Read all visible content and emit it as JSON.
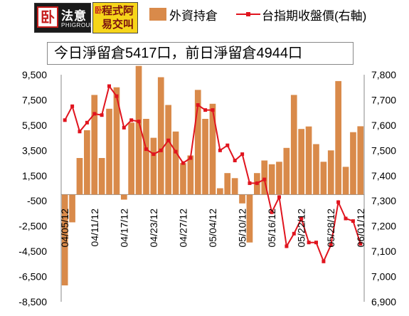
{
  "logos": {
    "logo1_mark": "卧",
    "logo1_name": "法意",
    "logo1_sub": "PHIGROUP",
    "logo2_mark": "卧",
    "logo2_text": "程式阿易交叫"
  },
  "note": "今日淨留倉5417口，前日淨留倉4944口",
  "colors": {
    "bar": "#d98a4a",
    "line": "#e0141e"
  },
  "chart_data": {
    "type": "bar",
    "legend": [
      "外資持倉",
      "台指期收盤價(右軸)"
    ],
    "legend_position": "top",
    "grid": false,
    "y_left": {
      "min": -8500,
      "max": 9500,
      "ticks": [
        9500,
        7500,
        5500,
        3500,
        1500,
        -500,
        -2500,
        -4500,
        -6500,
        -8500
      ],
      "tick_labels": [
        "9,500",
        "7,500",
        "5,500",
        "3,500",
        "1,500",
        "-500",
        "-2,500",
        "-4,500",
        "-6,500",
        "-8,500"
      ]
    },
    "y_right": {
      "min": 6900,
      "max": 7800,
      "ticks": [
        7800,
        7700,
        7600,
        7500,
        7400,
        7300,
        7200,
        7100,
        7000,
        6900
      ],
      "tick_labels": [
        "7,800",
        "7,700",
        "7,600",
        "7,500",
        "7,400",
        "7,300",
        "7,200",
        "7,100",
        "7,000",
        "6,900"
      ]
    },
    "x_tick_labels": [
      "04/05/12",
      "04/11/12",
      "04/17/12",
      "04/23/12",
      "04/27/12",
      "05/04/12",
      "05/10/12",
      "05/16/12",
      "05/22/12",
      "05/28/12",
      "06/01/12"
    ],
    "x_tick_index": [
      0,
      4,
      8,
      12,
      16,
      20,
      24,
      28,
      32,
      36,
      40
    ],
    "series": [
      {
        "name": "外資持倉",
        "axis": "left",
        "values": [
          -7200,
          -2200,
          2900,
          5100,
          7900,
          2900,
          6800,
          8500,
          -400,
          5700,
          10200,
          6000,
          4500,
          9300,
          7100,
          5000,
          2500,
          3100,
          8300,
          6000,
          7200,
          500,
          1700,
          1300,
          -700,
          -3800,
          1700,
          2700,
          2400,
          2600,
          3700,
          7900,
          5200,
          5400,
          4000,
          2600,
          3500,
          9000,
          2200,
          4944,
          5417
        ]
      },
      {
        "name": "台指期收盤價(右軸)",
        "axis": "right",
        "values": [
          7620,
          7675,
          7575,
          7610,
          7645,
          7640,
          7755,
          7715,
          7590,
          7620,
          7615,
          7505,
          7485,
          7500,
          7540,
          7495,
          7450,
          7470,
          7680,
          7660,
          7660,
          7500,
          7520,
          7460,
          7485,
          7370,
          7370,
          7385,
          7255,
          7315,
          7120,
          7170,
          7230,
          7135,
          7135,
          7060,
          7125,
          7295,
          7230,
          7220,
          7130
        ]
      }
    ]
  }
}
